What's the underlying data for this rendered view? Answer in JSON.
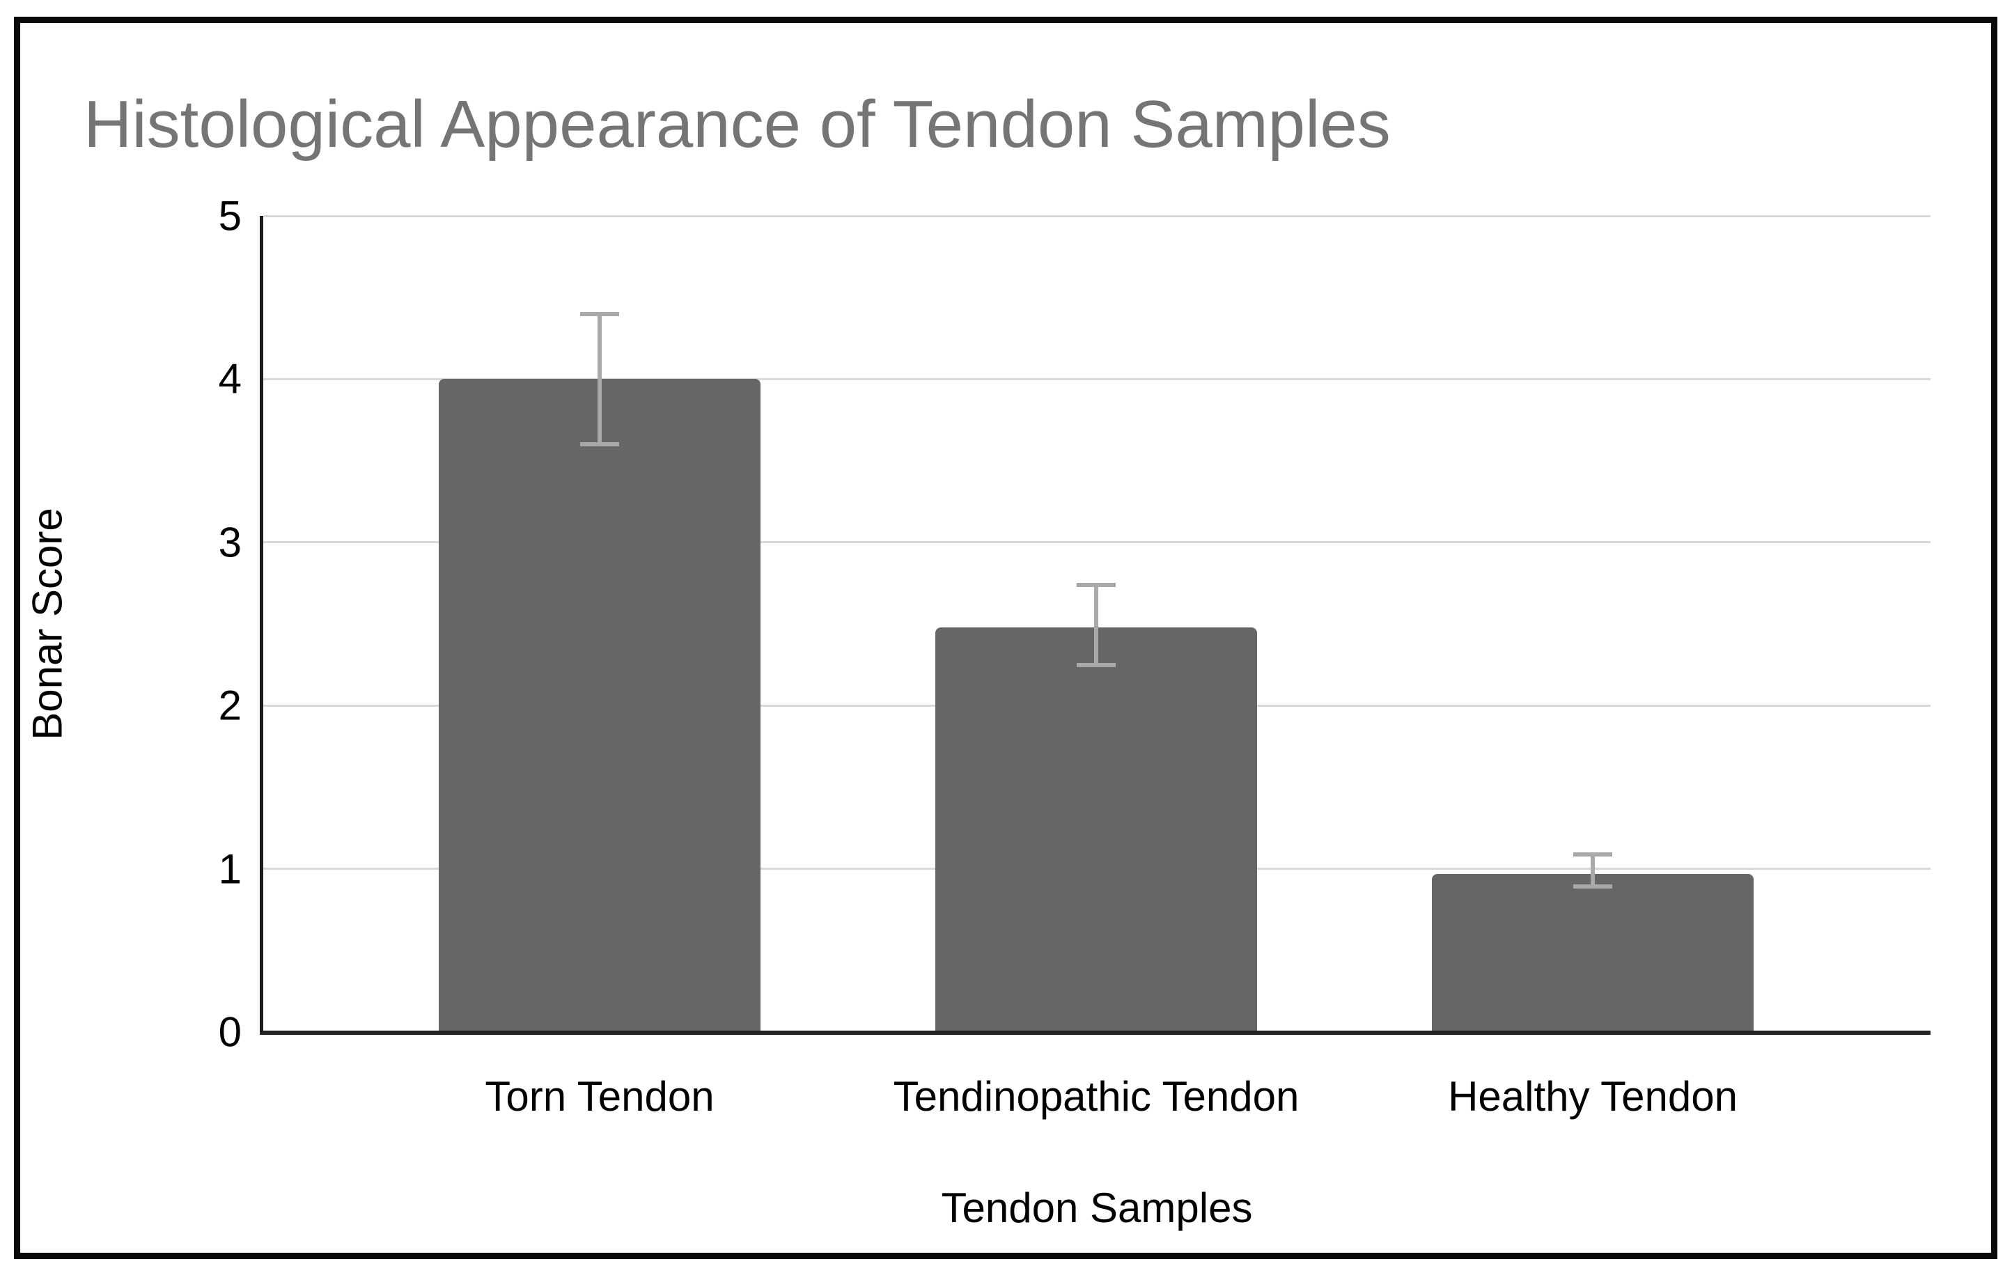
{
  "chart_data": {
    "type": "bar",
    "title": "Histological Appearance of Tendon Samples",
    "xlabel": "Tendon Samples",
    "ylabel": "Bonar Score",
    "categories": [
      "Torn Tendon",
      "Tendinopathic Tendon",
      "Healthy Tendon"
    ],
    "values": [
      4.0,
      2.48,
      0.97
    ],
    "error_low": [
      3.6,
      2.25,
      0.89
    ],
    "error_high": [
      4.4,
      2.74,
      1.09
    ],
    "ylim": [
      0,
      5
    ],
    "yticks": [
      5,
      4,
      3,
      2,
      1,
      0
    ],
    "grid": "horizontal gridlines at integer values",
    "legend": "none",
    "colors": {
      "bar": "#666666",
      "error_bar": "#a9a9a9",
      "gridline": "#d9d9d9",
      "axis_line": "#212121",
      "title_text": "#757575",
      "label_text": "#000000",
      "frame_border": "#0a0a0a",
      "background": "#ffffff"
    }
  }
}
